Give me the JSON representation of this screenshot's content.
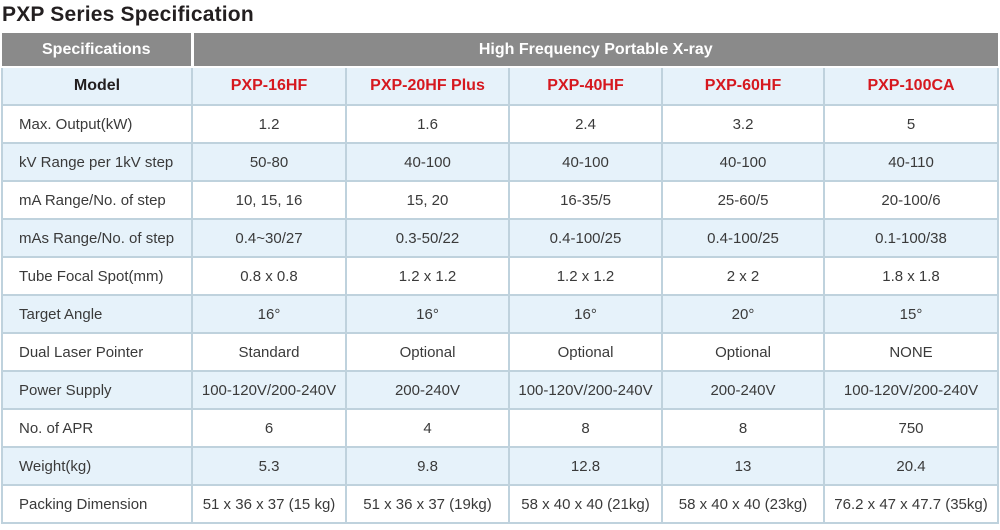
{
  "title": "PXP Series Specification",
  "colors": {
    "header_gray": "#8a8a8a",
    "row_light_blue": "#e6f2fa",
    "model_red": "#d6181f",
    "border": "#bfd2dd"
  },
  "table": {
    "header": {
      "col1": "Specifications",
      "col2": "High Frequency Portable X-ray"
    },
    "model_row": {
      "label": "Model",
      "models": [
        "PXP-16HF",
        "PXP-20HF Plus",
        "PXP-40HF",
        "PXP-60HF",
        "PXP-100CA"
      ]
    },
    "rows": [
      {
        "label": "Max. Output(kW)",
        "values": [
          "1.2",
          "1.6",
          "2.4",
          "3.2",
          "5"
        ]
      },
      {
        "label": "kV Range per 1kV step",
        "values": [
          "50-80",
          "40-100",
          "40-100",
          "40-100",
          "40-110"
        ]
      },
      {
        "label": "mA Range/No. of step",
        "values": [
          "10, 15, 16",
          "15, 20",
          "16-35/5",
          "25-60/5",
          "20-100/6"
        ]
      },
      {
        "label": "mAs Range/No. of step",
        "values": [
          "0.4~30/27",
          "0.3-50/22",
          "0.4-100/25",
          "0.4-100/25",
          "0.1-100/38"
        ]
      },
      {
        "label": "Tube Focal Spot(mm)",
        "values": [
          "0.8 x 0.8",
          "1.2 x 1.2",
          "1.2 x 1.2",
          "2 x 2",
          "1.8 x 1.8"
        ]
      },
      {
        "label": "Target Angle",
        "values": [
          "16°",
          "16°",
          "16°",
          "20°",
          "15°"
        ]
      },
      {
        "label": "Dual Laser Pointer",
        "values": [
          "Standard",
          "Optional",
          "Optional",
          "Optional",
          "NONE"
        ]
      },
      {
        "label": "Power Supply",
        "values": [
          "100-120V/200-240V",
          "200-240V",
          "100-120V/200-240V",
          "200-240V",
          "100-120V/200-240V"
        ]
      },
      {
        "label": "No. of APR",
        "values": [
          "6",
          "4",
          "8",
          "8",
          "750"
        ]
      },
      {
        "label": "Weight(kg)",
        "values": [
          "5.3",
          "9.8",
          "12.8",
          "13",
          "20.4"
        ]
      },
      {
        "label": "Packing Dimension",
        "values": [
          "51 x 36 x 37 (15 kg)",
          "51 x 36 x 37 (19kg)",
          "58 x 40 x 40 (21kg)",
          "58 x 40 x 40 (23kg)",
          "76.2 x 47 x 47.7 (35kg)"
        ]
      }
    ]
  }
}
